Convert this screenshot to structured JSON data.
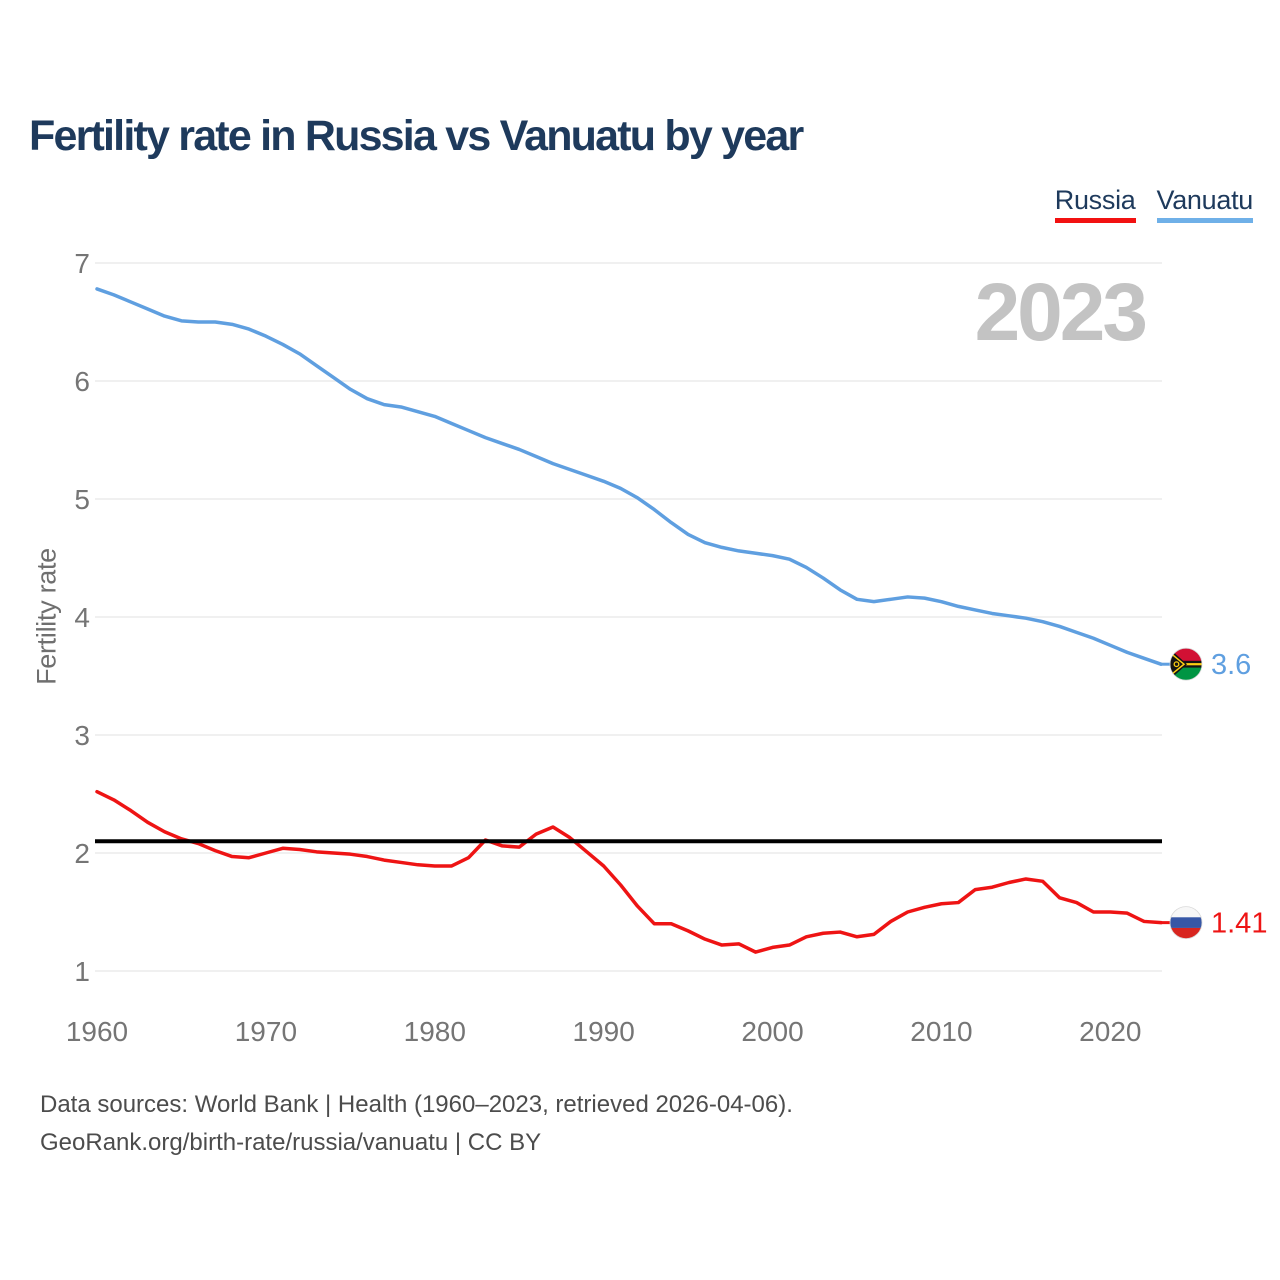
{
  "header": {
    "title": "Fertility rate in Russia vs Vanuatu by year"
  },
  "legend": {
    "position": "top-right",
    "items": [
      {
        "label": "Russia",
        "color": "#f21111"
      },
      {
        "label": "Vanuatu",
        "color": "#6fb0e8"
      }
    ]
  },
  "watermark": "2023",
  "footer": {
    "line1": "Data sources: World Bank | Health (1960–2023, retrieved 2026-04-06).",
    "line2": "GeoRank.org/birth-rate/russia/vanuatu | CC BY"
  },
  "chart_data": {
    "type": "line",
    "title": "Fertility rate in Russia vs Vanuatu by year",
    "xlabel": "",
    "ylabel": "Fertility rate",
    "xlim": [
      1960,
      2023
    ],
    "ylim": [
      1,
      7
    ],
    "yticks": [
      1,
      2,
      3,
      4,
      5,
      6,
      7
    ],
    "xticks": [
      1960,
      1970,
      1980,
      1990,
      2000,
      2010,
      2020
    ],
    "grid": true,
    "gridline_color": "#ebebeb",
    "axis_text_color": "#757575",
    "reference_line": {
      "value": 2.1,
      "color": "#000000"
    },
    "x": [
      1960,
      1961,
      1962,
      1963,
      1964,
      1965,
      1966,
      1967,
      1968,
      1969,
      1970,
      1971,
      1972,
      1973,
      1974,
      1975,
      1976,
      1977,
      1978,
      1979,
      1980,
      1981,
      1982,
      1983,
      1984,
      1985,
      1986,
      1987,
      1988,
      1989,
      1990,
      1991,
      1992,
      1993,
      1994,
      1995,
      1996,
      1997,
      1998,
      1999,
      2000,
      2001,
      2002,
      2003,
      2004,
      2005,
      2006,
      2007,
      2008,
      2009,
      2010,
      2011,
      2012,
      2013,
      2014,
      2015,
      2016,
      2017,
      2018,
      2019,
      2020,
      2021,
      2022,
      2023
    ],
    "series": [
      {
        "name": "Russia",
        "color": "#ee1414",
        "end_label": "1.41",
        "flag": "russia",
        "values": [
          2.52,
          2.45,
          2.36,
          2.26,
          2.18,
          2.12,
          2.08,
          2.02,
          1.97,
          1.96,
          2.0,
          2.04,
          2.03,
          2.01,
          2.0,
          1.99,
          1.97,
          1.94,
          1.92,
          1.9,
          1.89,
          1.89,
          1.96,
          2.11,
          2.06,
          2.05,
          2.16,
          2.22,
          2.13,
          2.01,
          1.89,
          1.73,
          1.55,
          1.4,
          1.4,
          1.34,
          1.27,
          1.22,
          1.23,
          1.16,
          1.2,
          1.22,
          1.29,
          1.32,
          1.33,
          1.29,
          1.31,
          1.42,
          1.5,
          1.54,
          1.57,
          1.58,
          1.69,
          1.71,
          1.75,
          1.78,
          1.76,
          1.62,
          1.58,
          1.5,
          1.5,
          1.49,
          1.42,
          1.41
        ]
      },
      {
        "name": "Vanuatu",
        "color": "#5f9fe0",
        "end_label": "3.6",
        "flag": "vanuatu",
        "values": [
          6.78,
          6.73,
          6.67,
          6.61,
          6.55,
          6.51,
          6.5,
          6.5,
          6.48,
          6.44,
          6.38,
          6.31,
          6.23,
          6.13,
          6.03,
          5.93,
          5.85,
          5.8,
          5.78,
          5.74,
          5.7,
          5.64,
          5.58,
          5.52,
          5.47,
          5.42,
          5.36,
          5.3,
          5.25,
          5.2,
          5.15,
          5.09,
          5.01,
          4.91,
          4.8,
          4.7,
          4.63,
          4.59,
          4.56,
          4.54,
          4.52,
          4.49,
          4.42,
          4.33,
          4.23,
          4.15,
          4.13,
          4.15,
          4.17,
          4.16,
          4.13,
          4.09,
          4.06,
          4.03,
          4.01,
          3.99,
          3.96,
          3.92,
          3.87,
          3.82,
          3.76,
          3.7,
          3.65,
          3.6
        ]
      }
    ]
  }
}
